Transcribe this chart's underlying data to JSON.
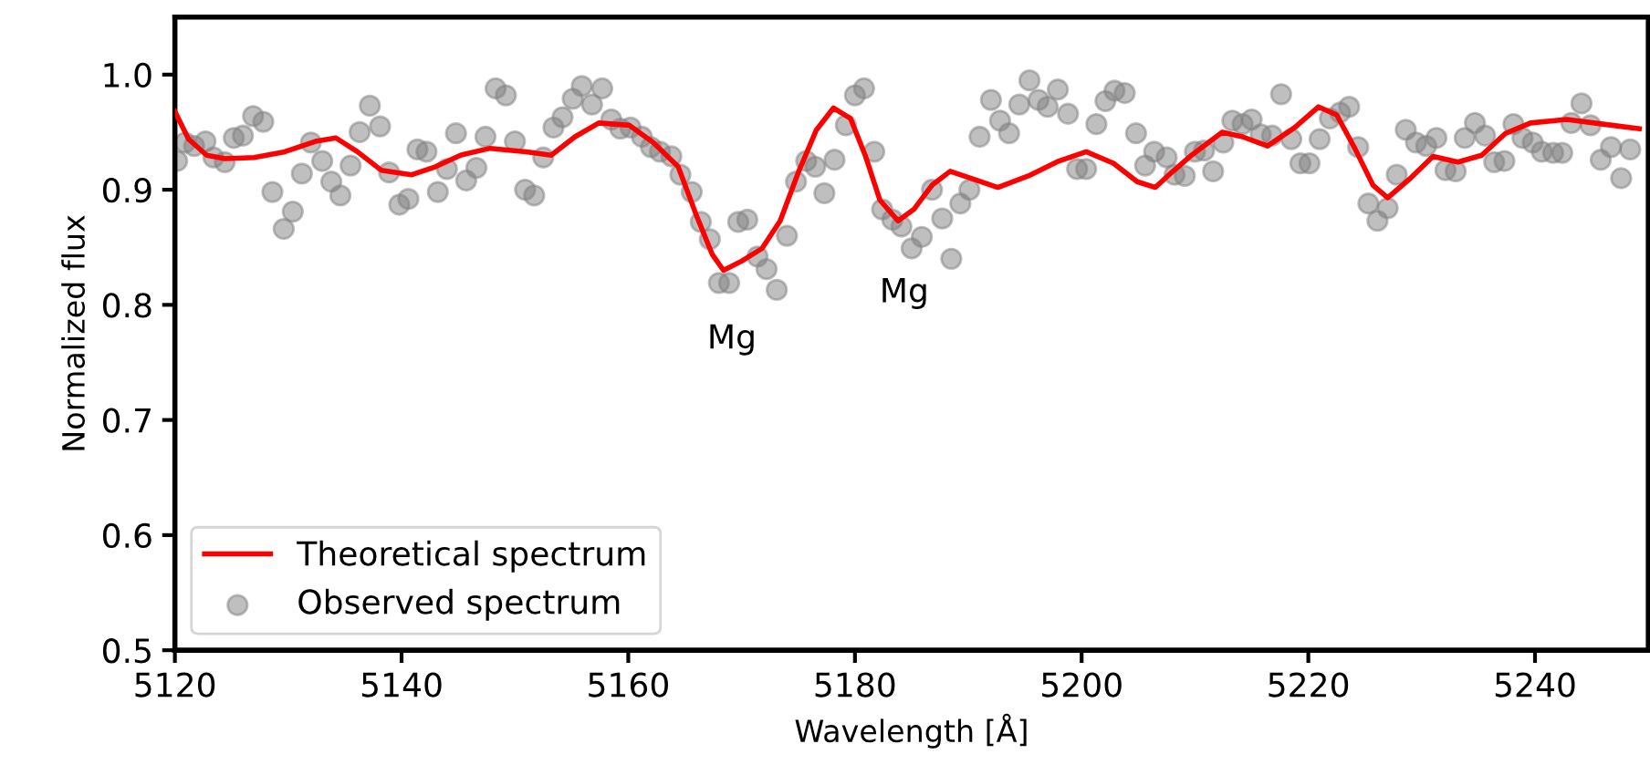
{
  "chart_data": {
    "type": "line",
    "xlabel": "Wavelength [Å]",
    "ylabel": "Normalized flux",
    "xlim": [
      5120,
      5250
    ],
    "ylim": [
      0.5,
      1.05
    ],
    "xticks": [
      5120,
      5140,
      5160,
      5180,
      5200,
      5220,
      5240
    ],
    "yticks": [
      0.5,
      0.6,
      0.7,
      0.8,
      0.9,
      {
        "value": 1,
        "label": "1.0"
      }
    ],
    "grid": false,
    "legend": "bottom left",
    "annotations": [
      "Mg",
      "Mg"
    ],
    "series": [
      {
        "name": "Theoretical spectrum",
        "color": "#ff0000",
        "marker": "none",
        "line_style": "solid",
        "x": [
          5120,
          5121.2,
          5122.8,
          5124.4,
          5127,
          5129.7,
          5132.4,
          5134.2,
          5136.1,
          5138.2,
          5140.9,
          5143,
          5145.2,
          5147.8,
          5151,
          5153.2,
          5155.3,
          5157.4,
          5160.1,
          5162.2,
          5164.4,
          5166,
          5167.4,
          5168.4,
          5170,
          5171.8,
          5173.4,
          5175,
          5176.6,
          5178.1,
          5179.6,
          5180.9,
          5182.2,
          5183.8,
          5185.2,
          5186.8,
          5188.4,
          5190.5,
          5192.6,
          5195.3,
          5198,
          5200.4,
          5202.8,
          5204.9,
          5206.5,
          5207.6,
          5209.7,
          5212.4,
          5214.2,
          5216.4,
          5218.8,
          5220.9,
          5222.5,
          5224.1,
          5225.7,
          5227,
          5228.9,
          5231,
          5233.2,
          5235.3,
          5237.4,
          5239.6,
          5242.8,
          5246,
          5249.2
        ],
        "values": [
          0.968,
          0.944,
          0.93,
          0.927,
          0.928,
          0.933,
          0.942,
          0.945,
          0.933,
          0.917,
          0.913,
          0.92,
          0.93,
          0.936,
          0.933,
          0.93,
          0.946,
          0.958,
          0.956,
          0.941,
          0.92,
          0.878,
          0.844,
          0.83,
          0.838,
          0.849,
          0.873,
          0.915,
          0.952,
          0.971,
          0.962,
          0.93,
          0.891,
          0.873,
          0.883,
          0.904,
          0.916,
          0.909,
          0.902,
          0.912,
          0.925,
          0.933,
          0.923,
          0.907,
          0.902,
          0.912,
          0.93,
          0.95,
          0.946,
          0.938,
          0.954,
          0.972,
          0.965,
          0.936,
          0.904,
          0.893,
          0.909,
          0.929,
          0.924,
          0.93,
          0.949,
          0.958,
          0.961,
          0.957,
          0.953
        ]
      },
      {
        "name": "Observed spectrum",
        "type": "scatter",
        "color": "#808080",
        "marker": "circle",
        "x": [
          5120.2,
          5120.9,
          5121.7,
          5122.7,
          5123.4,
          5124.4,
          5125.2,
          5126,
          5126.9,
          5127.8,
          5128.6,
          5129.6,
          5130.4,
          5131.2,
          5132,
          5133,
          5133.8,
          5134.6,
          5135.5,
          5136.3,
          5137.2,
          5138.1,
          5138.9,
          5139.8,
          5140.6,
          5141.4,
          5142.2,
          5143.2,
          5144,
          5144.8,
          5145.7,
          5146.6,
          5147.4,
          5148.3,
          5149.2,
          5150,
          5150.9,
          5151.7,
          5152.5,
          5153.4,
          5154.2,
          5155.1,
          5155.9,
          5156.8,
          5157.7,
          5158.5,
          5159.3,
          5160.2,
          5161.2,
          5162,
          5162.8,
          5163.8,
          5164.6,
          5165.6,
          5166.4,
          5167.2,
          5168,
          5168.9,
          5169.7,
          5170.5,
          5171.4,
          5172.2,
          5173.1,
          5174,
          5174.8,
          5175.7,
          5176.5,
          5177.3,
          5178.2,
          5179.2,
          5180,
          5180.8,
          5181.7,
          5182.4,
          5183.3,
          5184.1,
          5185,
          5185.9,
          5186.8,
          5187.7,
          5188.5,
          5189.3,
          5190.1,
          5191,
          5192,
          5192.8,
          5193.6,
          5194.5,
          5195.4,
          5196.2,
          5197,
          5197.9,
          5198.8,
          5199.6,
          5200.4,
          5201.3,
          5202.1,
          5202.9,
          5203.8,
          5204.8,
          5205.6,
          5206.4,
          5207.5,
          5208.2,
          5209.1,
          5210,
          5210.8,
          5211.6,
          5212.5,
          5213.3,
          5214.2,
          5215,
          5215.8,
          5216.8,
          5217.6,
          5218.5,
          5219.3,
          5220.1,
          5221,
          5221.9,
          5222.8,
          5223.6,
          5224.4,
          5225.3,
          5226.1,
          5227,
          5227.8,
          5228.6,
          5229.5,
          5230.4,
          5231.3,
          5232.1,
          5233,
          5233.8,
          5234.7,
          5235.6,
          5236.4,
          5237.3,
          5238.1,
          5238.9,
          5239.8,
          5240.6,
          5241.6,
          5242.4,
          5243.2,
          5244.1,
          5244.9,
          5245.8,
          5246.7,
          5247.6,
          5248.4
        ],
        "values": [
          0.925,
          0.941,
          0.938,
          0.942,
          0.928,
          0.924,
          0.945,
          0.947,
          0.964,
          0.959,
          0.898,
          0.866,
          0.881,
          0.914,
          0.941,
          0.925,
          0.907,
          0.895,
          0.921,
          0.95,
          0.973,
          0.955,
          0.915,
          0.887,
          0.892,
          0.935,
          0.933,
          0.898,
          0.918,
          0.949,
          0.908,
          0.919,
          0.946,
          0.988,
          0.982,
          0.942,
          0.9,
          0.895,
          0.928,
          0.954,
          0.963,
          0.979,
          0.99,
          0.974,
          0.988,
          0.961,
          0.953,
          0.954,
          0.946,
          0.937,
          0.933,
          0.929,
          0.913,
          0.898,
          0.872,
          0.857,
          0.819,
          0.819,
          0.872,
          0.874,
          0.842,
          0.831,
          0.813,
          0.86,
          0.907,
          0.925,
          0.92,
          0.897,
          0.926,
          0.956,
          0.982,
          0.988,
          0.933,
          0.883,
          0.874,
          0.868,
          0.849,
          0.859,
          0.9,
          0.875,
          0.84,
          0.888,
          0.9,
          0.946,
          0.978,
          0.96,
          0.949,
          0.974,
          0.995,
          0.978,
          0.972,
          0.987,
          0.966,
          0.918,
          0.918,
          0.957,
          0.977,
          0.986,
          0.984,
          0.949,
          0.921,
          0.933,
          0.928,
          0.913,
          0.912,
          0.933,
          0.934,
          0.916,
          0.941,
          0.96,
          0.957,
          0.961,
          0.948,
          0.947,
          0.983,
          0.944,
          0.923,
          0.923,
          0.944,
          0.962,
          0.967,
          0.972,
          0.937,
          0.888,
          0.873,
          0.884,
          0.913,
          0.952,
          0.941,
          0.938,
          0.945,
          0.917,
          0.916,
          0.945,
          0.958,
          0.947,
          0.924,
          0.925,
          0.957,
          0.945,
          0.941,
          0.933,
          0.932,
          0.932,
          0.958,
          0.975,
          0.956,
          0.926,
          0.937,
          0.91,
          0.935
        ]
      }
    ]
  }
}
